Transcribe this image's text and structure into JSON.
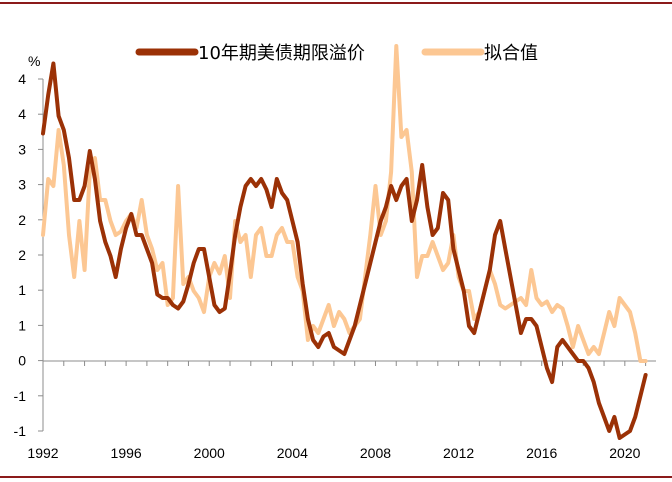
{
  "chart_data": {
    "type": "line",
    "title": "",
    "xlabel": "",
    "ylabel": "%",
    "ylim": [
      -1,
      4.5
    ],
    "xlim": [
      1992,
      2021.5
    ],
    "y_tick_labels": [
      "4",
      "4",
      "3",
      "3",
      "2",
      "2",
      "1",
      "1",
      "0",
      "-1",
      "-1"
    ],
    "x_tick_labels": [
      "1992",
      "1996",
      "2000",
      "2004",
      "2008",
      "2012",
      "2016",
      "2020"
    ],
    "legend_position": "top-center",
    "grid": false,
    "series": [
      {
        "name": "10年期美债期限溢价",
        "color": "#9b3106",
        "x": [
          1992.0,
          1992.25,
          1992.5,
          1992.75,
          1993.0,
          1993.25,
          1993.5,
          1993.75,
          1994.0,
          1994.25,
          1994.5,
          1994.75,
          1995.0,
          1995.25,
          1995.5,
          1995.75,
          1996.0,
          1996.25,
          1996.5,
          1996.75,
          1997.0,
          1997.25,
          1997.5,
          1997.75,
          1998.0,
          1998.25,
          1998.5,
          1998.75,
          1999.0,
          1999.25,
          1999.5,
          1999.75,
          2000.0,
          2000.25,
          2000.5,
          2000.75,
          2001.0,
          2001.25,
          2001.5,
          2001.75,
          2002.0,
          2002.25,
          2002.5,
          2002.75,
          2003.0,
          2003.25,
          2003.5,
          2003.75,
          2004.0,
          2004.25,
          2004.5,
          2004.75,
          2005.0,
          2005.25,
          2005.5,
          2005.75,
          2006.0,
          2006.25,
          2006.5,
          2006.75,
          2007.0,
          2007.25,
          2007.5,
          2007.75,
          2008.0,
          2008.25,
          2008.5,
          2008.75,
          2009.0,
          2009.25,
          2009.5,
          2009.75,
          2010.0,
          2010.25,
          2010.5,
          2010.75,
          2011.0,
          2011.25,
          2011.5,
          2011.75,
          2012.0,
          2012.25,
          2012.5,
          2012.75,
          2013.0,
          2013.25,
          2013.5,
          2013.75,
          2014.0,
          2014.25,
          2014.5,
          2014.75,
          2015.0,
          2015.25,
          2015.5,
          2015.75,
          2016.0,
          2016.25,
          2016.5,
          2016.75,
          2017.0,
          2017.25,
          2017.5,
          2017.75,
          2018.0,
          2018.25,
          2018.5,
          2018.75,
          2019.0,
          2019.25,
          2019.5,
          2019.75,
          2020.0,
          2020.25,
          2020.5,
          2020.75,
          2021.0
        ],
        "values": [
          3.25,
          3.8,
          4.25,
          3.5,
          3.3,
          2.9,
          2.3,
          2.3,
          2.5,
          3.0,
          2.6,
          2.0,
          1.7,
          1.5,
          1.2,
          1.6,
          1.9,
          2.1,
          1.8,
          1.8,
          1.6,
          1.4,
          0.95,
          0.9,
          0.9,
          0.8,
          0.75,
          0.85,
          1.1,
          1.4,
          1.6,
          1.6,
          1.2,
          0.8,
          0.7,
          0.75,
          1.25,
          1.8,
          2.2,
          2.5,
          2.6,
          2.5,
          2.6,
          2.45,
          2.2,
          2.6,
          2.4,
          2.3,
          2.0,
          1.7,
          1.1,
          0.6,
          0.3,
          0.2,
          0.35,
          0.4,
          0.2,
          0.15,
          0.1,
          0.3,
          0.5,
          0.8,
          1.1,
          1.4,
          1.7,
          2.0,
          2.2,
          2.5,
          2.3,
          2.5,
          2.6,
          2.0,
          2.3,
          2.8,
          2.2,
          1.8,
          1.9,
          2.4,
          2.3,
          1.6,
          1.3,
          1.0,
          0.5,
          0.4,
          0.7,
          1.0,
          1.3,
          1.8,
          2.0,
          1.6,
          1.2,
          0.8,
          0.4,
          0.6,
          0.6,
          0.5,
          0.2,
          -0.1,
          -0.3,
          0.2,
          0.3,
          0.2,
          0.1,
          0.0,
          0.0,
          -0.1,
          -0.3,
          -0.6,
          -0.8,
          -1.0,
          -0.8,
          -1.1,
          -1.05,
          -1.0,
          -0.8,
          -0.5,
          -0.2
        ]
      },
      {
        "name": "拟合值",
        "color": "#fcc793",
        "x": [
          1992.0,
          1992.25,
          1992.5,
          1992.75,
          1993.0,
          1993.25,
          1993.5,
          1993.75,
          1994.0,
          1994.25,
          1994.5,
          1994.75,
          1995.0,
          1995.25,
          1995.5,
          1995.75,
          1996.0,
          1996.25,
          1996.5,
          1996.75,
          1997.0,
          1997.25,
          1997.5,
          1997.75,
          1998.0,
          1998.25,
          1998.5,
          1998.75,
          1999.0,
          1999.25,
          1999.5,
          1999.75,
          2000.0,
          2000.25,
          2000.5,
          2000.75,
          2001.0,
          2001.25,
          2001.5,
          2001.75,
          2002.0,
          2002.25,
          2002.5,
          2002.75,
          2003.0,
          2003.25,
          2003.5,
          2003.75,
          2004.0,
          2004.25,
          2004.5,
          2004.75,
          2005.0,
          2005.25,
          2005.5,
          2005.75,
          2006.0,
          2006.25,
          2006.5,
          2006.75,
          2007.0,
          2007.25,
          2007.5,
          2007.75,
          2008.0,
          2008.25,
          2008.5,
          2008.75,
          2009.0,
          2009.25,
          2009.5,
          2009.75,
          2010.0,
          2010.25,
          2010.5,
          2010.75,
          2011.0,
          2011.25,
          2011.5,
          2011.75,
          2012.0,
          2012.25,
          2012.5,
          2012.75,
          2013.0,
          2013.25,
          2013.5,
          2013.75,
          2014.0,
          2014.25,
          2014.5,
          2014.75,
          2015.0,
          2015.25,
          2015.5,
          2015.75,
          2016.0,
          2016.25,
          2016.5,
          2016.75,
          2017.0,
          2017.25,
          2017.5,
          2017.75,
          2018.0,
          2018.25,
          2018.5,
          2018.75,
          2019.0,
          2019.25,
          2019.5,
          2019.75,
          2020.0,
          2020.25,
          2020.5,
          2020.75,
          2021.0
        ],
        "values": [
          1.8,
          2.6,
          2.5,
          3.3,
          2.8,
          1.8,
          1.2,
          2.0,
          1.3,
          2.7,
          2.9,
          2.3,
          2.3,
          2.0,
          1.8,
          1.85,
          2.0,
          2.1,
          1.9,
          2.3,
          1.8,
          1.6,
          1.3,
          1.4,
          0.8,
          0.9,
          2.5,
          1.1,
          1.2,
          1.0,
          0.9,
          0.7,
          1.2,
          1.4,
          1.25,
          1.5,
          0.9,
          2.0,
          1.7,
          1.8,
          1.2,
          1.8,
          1.9,
          1.5,
          1.5,
          1.8,
          1.9,
          1.7,
          1.7,
          1.2,
          1.0,
          0.3,
          0.5,
          0.4,
          0.6,
          0.8,
          0.5,
          0.7,
          0.6,
          0.4,
          0.5,
          0.6,
          1.2,
          1.8,
          2.5,
          1.8,
          2.0,
          2.7,
          4.5,
          3.2,
          3.3,
          2.7,
          1.2,
          1.5,
          1.5,
          1.7,
          1.5,
          1.3,
          1.4,
          1.8,
          1.2,
          1.0,
          1.0,
          0.6,
          0.7,
          1.0,
          1.3,
          1.1,
          0.8,
          0.75,
          0.8,
          0.85,
          0.9,
          0.8,
          1.3,
          0.9,
          0.8,
          0.85,
          0.7,
          0.8,
          0.75,
          0.5,
          0.2,
          0.5,
          0.3,
          0.1,
          0.2,
          0.1,
          0.4,
          0.7,
          0.5,
          0.9,
          0.8,
          0.7,
          0.4,
          0.0,
          0.0
        ]
      }
    ]
  }
}
